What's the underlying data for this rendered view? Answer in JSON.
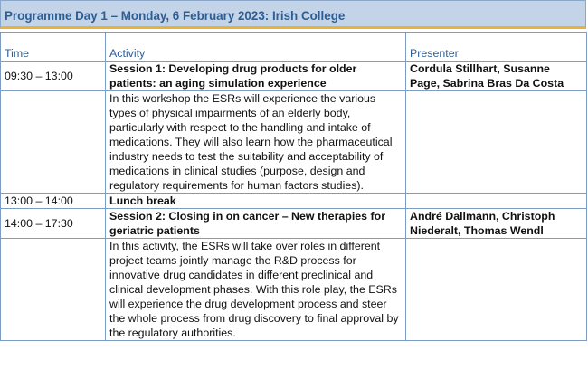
{
  "title": "Programme Day 1 – Monday, 6 February 2023: Irish College",
  "headers": {
    "time": "Time",
    "activity": "Activity",
    "presenter": "Presenter"
  },
  "rows": [
    {
      "time": "09:30 – 13:00",
      "activity": "Session 1: Developing drug products for older patients: an aging simulation experience",
      "presenter": "Cordula Stillhart, Susanne Page, Sabrina Bras Da Costa"
    },
    {
      "time": "",
      "activity": "In this workshop the ESRs will experience the various types of physical impairments of an elderly body, particularly with respect to the handling and intake of medications. They will also learn how the pharmaceutical industry needs to test the suitability and acceptability of medications in clinical studies (purpose, design and regulatory requirements for human factors studies).",
      "presenter": ""
    },
    {
      "time": "13:00 – 14:00",
      "activity": "Lunch break",
      "presenter": ""
    },
    {
      "time": "14:00 – 17:30",
      "activity": "Session 2: Closing in on cancer – New therapies for geriatric patients",
      "presenter": "André Dallmann, Christoph Niederalt, Thomas Wendl"
    },
    {
      "time": "",
      "activity": "In this activity, the ESRs will take over roles in different project teams jointly manage the R&D process for innovative drug candidates in different preclinical and clinical development phases. With this role play, the ESRs will experience the drug development process and steer the whole process from drug discovery to final approval by the regulatory authorities.",
      "presenter": ""
    }
  ]
}
